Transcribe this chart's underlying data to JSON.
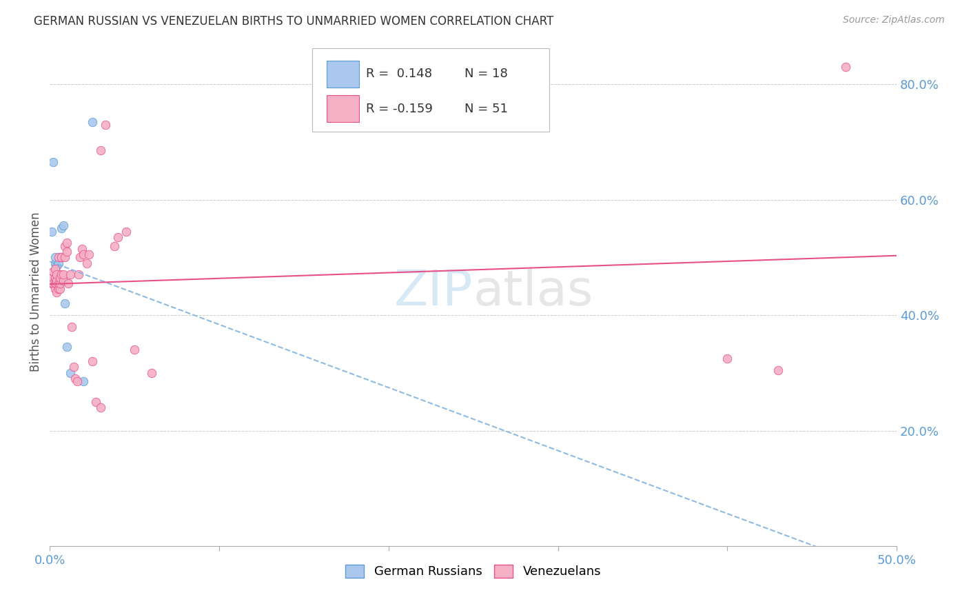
{
  "title": "GERMAN RUSSIAN VS VENEZUELAN BIRTHS TO UNMARRIED WOMEN CORRELATION CHART",
  "source": "Source: ZipAtlas.com",
  "ylabel": "Births to Unmarried Women",
  "ylabel_right_ticks": [
    "20.0%",
    "40.0%",
    "60.0%",
    "80.0%"
  ],
  "ylabel_right_vals": [
    0.2,
    0.4,
    0.6,
    0.8
  ],
  "watermark_zip": "ZIP",
  "watermark_atlas": "atlas",
  "xlim": [
    0.0,
    0.5
  ],
  "ylim": [
    0.0,
    0.88
  ],
  "gr_label1": "R =  0.148",
  "gr_label2": "N = 18",
  "ven_label1": "R = -0.159",
  "ven_label2": "N = 51",
  "bottom_label1": "German Russians",
  "bottom_label2": "Venezuelans",
  "german_russian_x": [
    0.001,
    0.002,
    0.003,
    0.003,
    0.004,
    0.004,
    0.005,
    0.005,
    0.005,
    0.006,
    0.006,
    0.007,
    0.008,
    0.009,
    0.01,
    0.012,
    0.02,
    0.025
  ],
  "german_russian_y": [
    0.545,
    0.665,
    0.49,
    0.5,
    0.47,
    0.485,
    0.455,
    0.47,
    0.49,
    0.465,
    0.5,
    0.55,
    0.555,
    0.42,
    0.345,
    0.3,
    0.285,
    0.735
  ],
  "venezuelan_x": [
    0.001,
    0.001,
    0.002,
    0.002,
    0.003,
    0.003,
    0.003,
    0.003,
    0.004,
    0.004,
    0.004,
    0.004,
    0.005,
    0.005,
    0.005,
    0.006,
    0.006,
    0.006,
    0.007,
    0.007,
    0.008,
    0.008,
    0.009,
    0.009,
    0.01,
    0.01,
    0.011,
    0.012,
    0.013,
    0.014,
    0.015,
    0.016,
    0.017,
    0.018,
    0.019,
    0.02,
    0.022,
    0.023,
    0.025,
    0.027,
    0.03,
    0.03,
    0.033,
    0.038,
    0.04,
    0.045,
    0.05,
    0.06,
    0.4,
    0.43,
    0.47
  ],
  "venezuelan_y": [
    0.455,
    0.465,
    0.455,
    0.475,
    0.445,
    0.455,
    0.465,
    0.48,
    0.44,
    0.455,
    0.46,
    0.47,
    0.445,
    0.455,
    0.5,
    0.445,
    0.455,
    0.465,
    0.47,
    0.5,
    0.46,
    0.47,
    0.5,
    0.52,
    0.51,
    0.525,
    0.455,
    0.47,
    0.38,
    0.31,
    0.29,
    0.285,
    0.47,
    0.5,
    0.515,
    0.505,
    0.49,
    0.505,
    0.32,
    0.25,
    0.24,
    0.685,
    0.73,
    0.52,
    0.535,
    0.545,
    0.34,
    0.3,
    0.325,
    0.305,
    0.83
  ],
  "gr_color": "#aac8ed",
  "gr_edge_color": "#5b9bd5",
  "ven_color": "#f5b0c5",
  "ven_edge_color": "#e8508a",
  "gr_trend_color": "#7ab0de",
  "ven_trend_color": "#e8508a",
  "background_color": "#ffffff",
  "grid_color": "#cccccc",
  "title_color": "#333333",
  "source_color": "#999999",
  "right_tick_color": "#5b9bd5",
  "marker_size": 9,
  "legend_box_color": "#ffffff",
  "legend_border_color": "#bbbbbb"
}
